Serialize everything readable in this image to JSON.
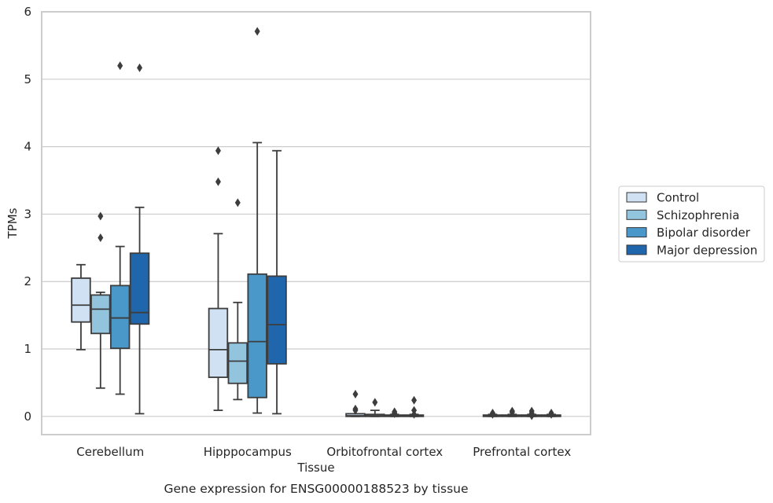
{
  "chart_data": {
    "type": "box",
    "caption": "Gene expression for ENSG00000188523 by tissue",
    "xlabel": "Tissue",
    "ylabel": "TPMs",
    "ylim": [
      -0.27,
      6.0
    ],
    "yticks": [
      0,
      1,
      2,
      3,
      4,
      5,
      6
    ],
    "grid": true,
    "legend_position": "right",
    "categories": [
      "Cerebellum",
      "Hipppocampus",
      "Orbitofrontal cortex",
      "Prefrontal cortex"
    ],
    "series": [
      {
        "name": "Control",
        "color": "#cfe1f2",
        "boxes": [
          {
            "whislo": 0.99,
            "q1": 1.4,
            "med": 1.65,
            "q3": 2.05,
            "whishi": 2.25,
            "fliers": []
          },
          {
            "whislo": 0.09,
            "q1": 0.58,
            "med": 0.99,
            "q3": 1.6,
            "whishi": 2.71,
            "fliers": [
              3.94,
              3.48
            ]
          },
          {
            "whislo": 0.0,
            "q1": 0.0,
            "med": 0.01,
            "q3": 0.04,
            "whishi": 0.04,
            "fliers": [
              0.33,
              0.11,
              0.09
            ]
          },
          {
            "whislo": 0.0,
            "q1": 0.0,
            "med": 0.01,
            "q3": 0.02,
            "whishi": 0.03,
            "fliers": [
              0.05,
              0.04,
              0.03
            ]
          }
        ]
      },
      {
        "name": "Schizophrenia",
        "color": "#93c4de",
        "boxes": [
          {
            "whislo": 0.42,
            "q1": 1.23,
            "med": 1.59,
            "q3": 1.8,
            "whishi": 1.84,
            "fliers": [
              2.97,
              2.65
            ]
          },
          {
            "whislo": 0.25,
            "q1": 0.49,
            "med": 0.82,
            "q3": 1.09,
            "whishi": 1.69,
            "fliers": [
              3.17
            ]
          },
          {
            "whislo": 0.0,
            "q1": 0.0,
            "med": 0.01,
            "q3": 0.03,
            "whishi": 0.09,
            "fliers": [
              0.21
            ]
          },
          {
            "whislo": 0.0,
            "q1": 0.0,
            "med": 0.01,
            "q3": 0.02,
            "whishi": 0.03,
            "fliers": [
              0.08,
              0.06
            ]
          }
        ]
      },
      {
        "name": "Bipolar disorder",
        "color": "#4a98c9",
        "boxes": [
          {
            "whislo": 0.33,
            "q1": 1.01,
            "med": 1.46,
            "q3": 1.94,
            "whishi": 2.52,
            "fliers": [
              5.2
            ]
          },
          {
            "whislo": 0.05,
            "q1": 0.28,
            "med": 1.11,
            "q3": 2.11,
            "whishi": 4.06,
            "fliers": [
              5.71
            ]
          },
          {
            "whislo": 0.0,
            "q1": 0.0,
            "med": 0.01,
            "q3": 0.02,
            "whishi": 0.03,
            "fliers": [
              0.07,
              0.05,
              0.04
            ]
          },
          {
            "whislo": 0.0,
            "q1": 0.0,
            "med": 0.01,
            "q3": 0.02,
            "whishi": 0.03,
            "fliers": [
              0.08,
              0.05,
              0.01
            ]
          }
        ]
      },
      {
        "name": "Major depression",
        "color": "#2066ac",
        "boxes": [
          {
            "whislo": 0.04,
            "q1": 1.37,
            "med": 1.54,
            "q3": 2.42,
            "whishi": 3.1,
            "fliers": [
              5.17
            ]
          },
          {
            "whislo": 0.04,
            "q1": 0.78,
            "med": 1.36,
            "q3": 2.08,
            "whishi": 3.94,
            "fliers": []
          },
          {
            "whislo": 0.0,
            "q1": 0.0,
            "med": 0.01,
            "q3": 0.02,
            "whishi": 0.03,
            "fliers": [
              0.24,
              0.09,
              0.03
            ]
          },
          {
            "whislo": 0.0,
            "q1": 0.0,
            "med": 0.01,
            "q3": 0.02,
            "whishi": 0.03,
            "fliers": [
              0.05,
              0.03
            ]
          }
        ]
      }
    ]
  }
}
